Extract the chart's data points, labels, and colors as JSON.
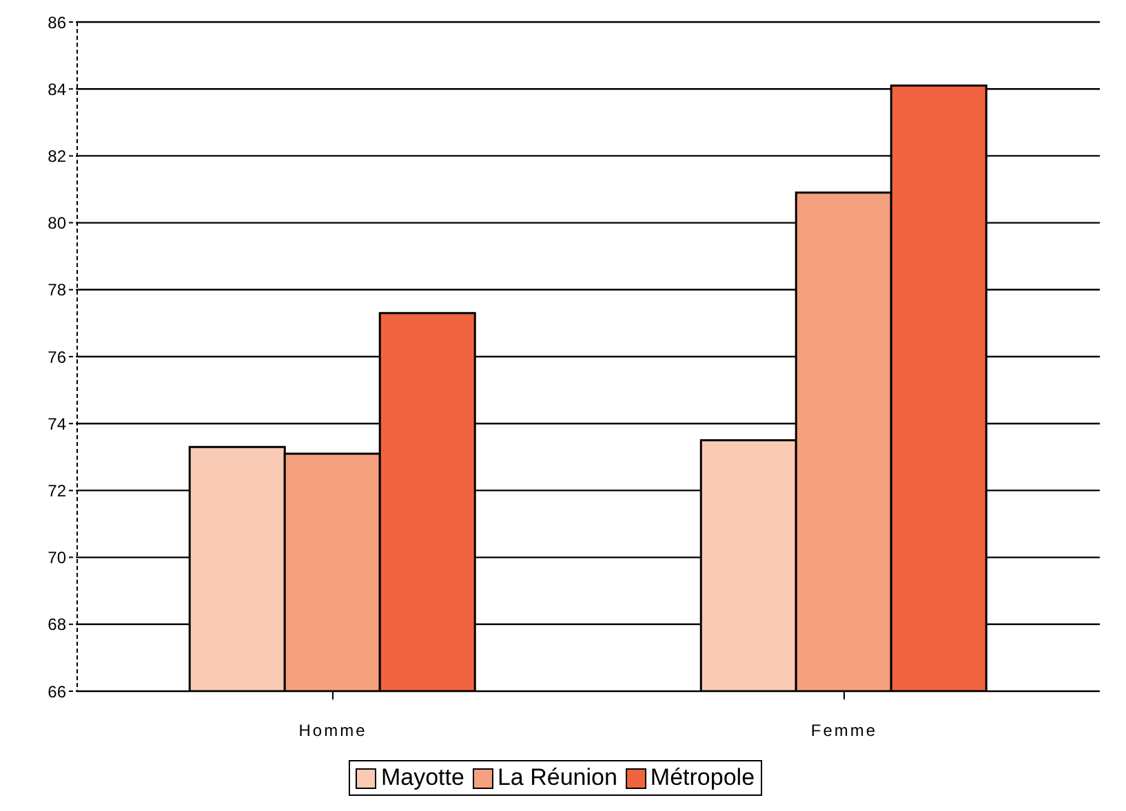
{
  "chart_data": {
    "type": "bar",
    "categories": [
      "Homme",
      "Femme"
    ],
    "series": [
      {
        "name": "Mayotte",
        "color": "#f9cbb5",
        "values": [
          73.3,
          73.5
        ]
      },
      {
        "name": "La Réunion",
        "color": "#f5a07e",
        "values": [
          73.1,
          80.9
        ]
      },
      {
        "name": "Métropole",
        "color": "#f0643f",
        "values": [
          77.3,
          84.1
        ]
      }
    ],
    "ylim": [
      66,
      86
    ],
    "yticks": [
      66,
      68,
      70,
      72,
      74,
      76,
      78,
      80,
      82,
      84,
      86
    ],
    "grid": "y",
    "legend": "bottom"
  }
}
